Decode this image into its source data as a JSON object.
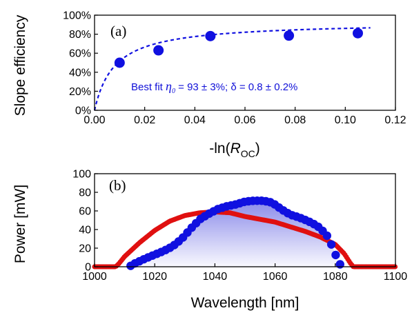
{
  "chart_data": [
    {
      "type": "scatter",
      "panel_label": "(a)",
      "xlabel_parts": [
        "-ln(",
        "R",
        "OC",
        ")"
      ],
      "ylabel": "Slope efficiency",
      "xlim": [
        0,
        0.12
      ],
      "ylim": [
        0,
        100
      ],
      "x_ticks": [
        "0.00",
        "0.02",
        "0.04",
        "0.06",
        "0.08",
        "0.10",
        "0.12"
      ],
      "y_ticks": [
        "0%",
        "20%",
        "40%",
        "60%",
        "80%",
        "100%"
      ],
      "series": [
        {
          "x": [
            0.01,
            0.0255,
            0.0462,
            0.0775,
            0.105
          ],
          "y": [
            50,
            63,
            78,
            78.5,
            81
          ],
          "color": "#1010e0",
          "marker": "circle"
        }
      ],
      "fit": {
        "eta0": 93,
        "delta": 0.8,
        "x_max": 0.11,
        "style": "dashed",
        "color": "#1010e0",
        "label_parts": [
          "Best fit ",
          "η",
          "0",
          " = 93 ± 3%; δ = 0.8 ± 0.2%"
        ]
      },
      "grid": false
    },
    {
      "type": "area",
      "panel_label": "(b)",
      "xlabel": "Wavelength [nm]",
      "ylabel": "Power [mW]",
      "xlim": [
        1000,
        1100
      ],
      "ylim": [
        0,
        100
      ],
      "x_ticks": [
        "1000",
        "1020",
        "1040",
        "1060",
        "1080",
        "1100"
      ],
      "y_ticks": [
        "0",
        "20",
        "40",
        "60",
        "80",
        "100"
      ],
      "series": [
        {
          "color": "#e01010",
          "style": "markers",
          "x": [
            1000,
            1007,
            1008,
            1010,
            1015,
            1020,
            1025,
            1030,
            1035,
            1040,
            1045,
            1050,
            1055,
            1060,
            1065,
            1070,
            1075,
            1080,
            1083,
            1085,
            1086,
            1100
          ],
          "y": [
            0,
            0,
            3,
            11,
            26,
            39,
            49,
            55,
            58,
            59,
            58,
            54,
            51,
            48,
            43,
            38,
            32,
            24,
            14,
            4,
            0,
            0
          ]
        },
        {
          "color": "#1010e0",
          "style": "markers",
          "fill": "gradient",
          "x": [
            1012,
            1013,
            1015,
            1017,
            1020,
            1023,
            1026,
            1029,
            1032,
            1035,
            1038,
            1041,
            1044,
            1047,
            1050,
            1053,
            1056,
            1059,
            1062,
            1065,
            1068,
            1071,
            1074,
            1077,
            1079,
            1080,
            1081,
            1082
          ],
          "y": [
            1,
            3,
            6,
            9,
            13,
            17,
            22,
            30,
            41,
            51,
            57,
            62,
            65,
            67,
            70,
            71,
            71,
            69,
            62,
            56,
            53,
            49,
            44,
            35,
            22,
            14,
            5,
            1
          ]
        }
      ],
      "grid": false
    }
  ]
}
